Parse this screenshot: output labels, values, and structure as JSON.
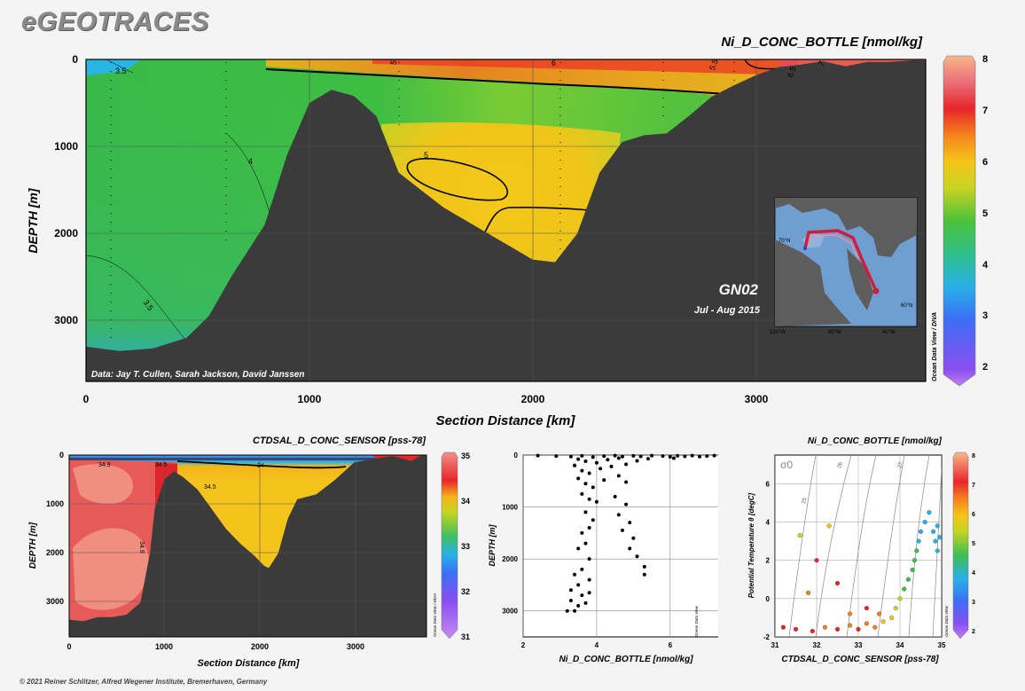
{
  "brand": "eGEOTRACES",
  "footer": "© 2021 Reiner Schlitzer, Alfred Wegener Institute, Bremerhaven, Germany",
  "odv_label": "Ocean Data View / DIVA",
  "odv_label_short": "Ocean Data View",
  "main_section": {
    "title": "Ni_D_CONC_BOTTLE [nmol/kg]",
    "ylabel": "DEPTH [m]",
    "xlabel": "Section Distance [km]",
    "x_ticks": [
      0,
      1000,
      2000,
      3000
    ],
    "y_ticks": [
      0,
      1000,
      2000,
      3000
    ],
    "xlim": [
      0,
      3760
    ],
    "ylim": [
      0,
      3700
    ],
    "credit": "Data: Jay T. Cullen, Sarah Jackson, David Janssen",
    "cruise": "GN02",
    "dates": "Jul - Aug 2015",
    "contour_labels": [
      "3.5",
      "4",
      "5",
      "5.5",
      "6",
      "6.5",
      "7",
      "5",
      "4",
      "3.5"
    ],
    "colorbar": {
      "min": 1.7,
      "max": 8,
      "ticks": [
        2,
        3,
        4,
        5,
        6,
        7,
        8
      ]
    },
    "inset_map": {
      "lat_labels": [
        "70°N",
        "60°N"
      ],
      "lon_labels": [
        "120°W",
        "80°W",
        "40°W"
      ]
    }
  },
  "salinity_section": {
    "title": "CTDSAL_D_CONC_SENSOR [pss-78]",
    "ylabel": "DEPTH [m]",
    "xlabel": "Section Distance [km]",
    "x_ticks": [
      0,
      1000,
      2000,
      3000
    ],
    "y_ticks": [
      0,
      1000,
      2000,
      3000
    ],
    "contour_labels": [
      "34.9",
      "34.5",
      "34",
      "34.5",
      "34.9",
      "34.9"
    ],
    "colorbar": {
      "min": 31,
      "max": 35,
      "ticks": [
        31,
        32,
        33,
        34,
        35
      ]
    }
  },
  "chart_data": [
    {
      "type": "heatmap",
      "title": "Ni_D_CONC_BOTTLE [nmol/kg]",
      "xlabel": "Section Distance [km]",
      "ylabel": "DEPTH [m]",
      "xlim": [
        0,
        3760
      ],
      "ylim": [
        3700,
        0
      ],
      "bathymetry": [
        [
          0,
          3300
        ],
        [
          150,
          3350
        ],
        [
          300,
          3320
        ],
        [
          450,
          3200
        ],
        [
          550,
          2950
        ],
        [
          650,
          2500
        ],
        [
          800,
          1900
        ],
        [
          900,
          1100
        ],
        [
          1000,
          500
        ],
        [
          1100,
          350
        ],
        [
          1200,
          420
        ],
        [
          1300,
          650
        ],
        [
          1400,
          1300
        ],
        [
          1500,
          1500
        ],
        [
          1600,
          1700
        ],
        [
          1700,
          1850
        ],
        [
          1800,
          2000
        ],
        [
          1900,
          2150
        ],
        [
          2000,
          2300
        ],
        [
          2100,
          2330
        ],
        [
          2200,
          2000
        ],
        [
          2300,
          1300
        ],
        [
          2400,
          950
        ],
        [
          2500,
          870
        ],
        [
          2600,
          850
        ],
        [
          2700,
          650
        ],
        [
          2800,
          430
        ],
        [
          2900,
          300
        ],
        [
          3000,
          180
        ],
        [
          3100,
          90
        ],
        [
          3200,
          60
        ],
        [
          3300,
          20
        ],
        [
          3400,
          80
        ],
        [
          3500,
          30
        ],
        [
          3600,
          30
        ],
        [
          3700,
          10
        ]
      ],
      "contours": [
        {
          "level": 3.5,
          "points": [
            [
              120,
              80
            ],
            [
              300,
              60
            ]
          ]
        },
        {
          "level": 5,
          "points": [
            [
              1500,
              1000
            ],
            [
              1800,
              1250
            ],
            [
              1700,
              1550
            ],
            [
              1500,
              1450
            ],
            [
              1450,
              1200
            ]
          ]
        },
        {
          "level": 6,
          "points": [
            [
              1300,
              30
            ],
            [
              2000,
              80
            ],
            [
              2700,
              160
            ],
            [
              3100,
              150
            ]
          ]
        }
      ]
    },
    {
      "type": "heatmap",
      "title": "CTDSAL_D_CONC_SENSOR [pss-78]",
      "xlabel": "Section Distance [km]",
      "ylabel": "DEPTH [m]",
      "xlim": [
        0,
        3760
      ],
      "ylim": [
        3700,
        0
      ],
      "bathymetry": [
        [
          0,
          3350
        ],
        [
          150,
          3380
        ],
        [
          300,
          3300
        ],
        [
          450,
          3300
        ],
        [
          600,
          3250
        ],
        [
          750,
          3000
        ],
        [
          850,
          2000
        ],
        [
          900,
          1100
        ],
        [
          1000,
          500
        ],
        [
          1100,
          330
        ],
        [
          1200,
          450
        ],
        [
          1350,
          700
        ],
        [
          1500,
          1100
        ],
        [
          1650,
          1500
        ],
        [
          1800,
          1800
        ],
        [
          1950,
          2050
        ],
        [
          2050,
          2250
        ],
        [
          2100,
          2300
        ],
        [
          2200,
          2000
        ],
        [
          2300,
          1300
        ],
        [
          2400,
          900
        ],
        [
          2600,
          800
        ],
        [
          2800,
          500
        ],
        [
          3000,
          150
        ],
        [
          3200,
          80
        ],
        [
          3400,
          20
        ],
        [
          3600,
          120
        ],
        [
          3700,
          10
        ]
      ]
    },
    {
      "type": "scatter",
      "xlabel": "Ni_D_CONC_BOTTLE [nmol/kg]",
      "ylabel": "DEPTH [m]",
      "xlim": [
        2,
        7.5
      ],
      "ylim": [
        3500,
        0
      ],
      "x_ticks": [
        2,
        4,
        6
      ],
      "y_ticks": [
        0,
        1000,
        2000,
        3000
      ],
      "points": [
        [
          2.4,
          10
        ],
        [
          2.9,
          20
        ],
        [
          3.3,
          30
        ],
        [
          3.6,
          15
        ],
        [
          3.9,
          40
        ],
        [
          4.2,
          20
        ],
        [
          4.5,
          10
        ],
        [
          4.7,
          30
        ],
        [
          5.0,
          15
        ],
        [
          5.2,
          25
        ],
        [
          5.5,
          10
        ],
        [
          5.8,
          20
        ],
        [
          6.0,
          35
        ],
        [
          6.2,
          15
        ],
        [
          6.4,
          25
        ],
        [
          6.6,
          10
        ],
        [
          6.8,
          30
        ],
        [
          7.0,
          20
        ],
        [
          7.2,
          10
        ],
        [
          3.5,
          80
        ],
        [
          3.7,
          120
        ],
        [
          4.0,
          150
        ],
        [
          4.3,
          90
        ],
        [
          4.6,
          60
        ],
        [
          5.1,
          110
        ],
        [
          5.4,
          70
        ],
        [
          6.1,
          60
        ],
        [
          3.4,
          200
        ],
        [
          3.6,
          300
        ],
        [
          3.8,
          350
        ],
        [
          4.1,
          260
        ],
        [
          4.4,
          220
        ],
        [
          4.8,
          180
        ],
        [
          3.5,
          450
        ],
        [
          3.7,
          550
        ],
        [
          3.9,
          620
        ],
        [
          4.2,
          480
        ],
        [
          4.6,
          400
        ],
        [
          4.8,
          520
        ],
        [
          3.6,
          750
        ],
        [
          3.8,
          850
        ],
        [
          4.0,
          900
        ],
        [
          4.5,
          800
        ],
        [
          4.8,
          950
        ],
        [
          3.7,
          1100
        ],
        [
          3.9,
          1250
        ],
        [
          4.6,
          1150
        ],
        [
          4.9,
          1300
        ],
        [
          3.8,
          1400
        ],
        [
          3.6,
          1500
        ],
        [
          4.7,
          1450
        ],
        [
          5.0,
          1600
        ],
        [
          3.7,
          1700
        ],
        [
          3.5,
          1800
        ],
        [
          4.9,
          1800
        ],
        [
          5.1,
          1950
        ],
        [
          3.8,
          2000
        ],
        [
          3.6,
          2200
        ],
        [
          5.3,
          2150
        ],
        [
          3.4,
          2300
        ],
        [
          3.5,
          2500
        ],
        [
          3.8,
          2400
        ],
        [
          5.3,
          2300
        ],
        [
          3.3,
          2600
        ],
        [
          3.6,
          2700
        ],
        [
          3.8,
          2650
        ],
        [
          3.3,
          2800
        ],
        [
          3.5,
          2900
        ],
        [
          3.7,
          2850
        ],
        [
          3.2,
          3000
        ],
        [
          3.4,
          3000
        ]
      ]
    },
    {
      "type": "scatter",
      "title": "Ni_D_CONC_BOTTLE [nmol/kg]",
      "xlabel": "CTDSAL_D_CONC_SENSOR [pss-78]",
      "ylabel": "Potential Temperature θ [degC]",
      "xlim": [
        31,
        35
      ],
      "ylim": [
        -2,
        7.5
      ],
      "x_ticks": [
        31,
        32,
        33,
        34,
        35
      ],
      "y_ticks": [
        -2,
        0,
        2,
        4,
        6
      ],
      "isopycnal_labels": [
        "24",
        "25",
        "26",
        "27"
      ],
      "sigma_label": "σ0",
      "color_scale": {
        "min": 1.7,
        "max": 8,
        "ticks": [
          2,
          3,
          4,
          5,
          6,
          7,
          8
        ]
      },
      "points": [
        [
          31.2,
          -1.5,
          7
        ],
        [
          31.5,
          -1.6,
          6.5
        ],
        [
          31.9,
          -1.7,
          6.8
        ],
        [
          32.2,
          -1.5,
          6.2
        ],
        [
          32.5,
          -1.6,
          7
        ],
        [
          32.8,
          -1.4,
          6
        ],
        [
          33.0,
          -1.6,
          6.5
        ],
        [
          33.2,
          -1.3,
          5.8
        ],
        [
          33.4,
          -1.5,
          6
        ],
        [
          33.6,
          -1.2,
          5.5
        ],
        [
          33.8,
          -1.0,
          5.2
        ],
        [
          33.9,
          -0.5,
          5
        ],
        [
          34.0,
          0.0,
          4.8
        ],
        [
          34.1,
          0.5,
          4.6
        ],
        [
          34.2,
          1.0,
          4.4
        ],
        [
          34.3,
          1.5,
          4.2
        ],
        [
          34.35,
          2.0,
          4.1
        ],
        [
          34.4,
          2.5,
          4
        ],
        [
          34.45,
          3.0,
          3.9
        ],
        [
          34.5,
          3.5,
          3.9
        ],
        [
          34.6,
          4.0,
          3.8
        ],
        [
          34.7,
          4.5,
          3.8
        ],
        [
          34.8,
          3.5,
          3.9
        ],
        [
          34.85,
          3.0,
          3.9
        ],
        [
          34.9,
          2.5,
          3.8
        ],
        [
          34.9,
          3.8,
          3.8
        ],
        [
          34.95,
          3.2,
          3.8
        ],
        [
          32.0,
          2.0,
          6.5
        ],
        [
          31.6,
          3.3,
          5
        ],
        [
          32.3,
          3.8,
          5.2
        ],
        [
          31.8,
          0.3,
          6
        ],
        [
          32.5,
          0.8,
          6.8
        ],
        [
          33.2,
          -0.5,
          6.3
        ],
        [
          32.8,
          -0.8,
          6
        ],
        [
          33.5,
          -0.8,
          5.9
        ]
      ]
    }
  ]
}
